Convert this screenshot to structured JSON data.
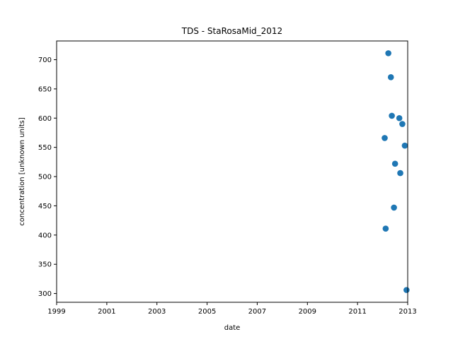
{
  "chart_data": {
    "type": "scatter",
    "title": "TDS - StaRosaMid_2012",
    "xlabel": "date",
    "ylabel": "concentration [unknown units]",
    "xlim": [
      "1999-01-01",
      "2013-01-01"
    ],
    "ylim": [
      285,
      732
    ],
    "x_ticks": [
      "1999",
      "2001",
      "2003",
      "2005",
      "2007",
      "2009",
      "2011",
      "2013"
    ],
    "y_ticks": [
      300,
      350,
      400,
      450,
      500,
      550,
      600,
      650,
      700
    ],
    "grid": false,
    "marker_color": "#1f77b4",
    "points": [
      {
        "x": "2012-02-01",
        "y": 566
      },
      {
        "x": "2012-02-15",
        "y": 411
      },
      {
        "x": "2012-03-25",
        "y": 711
      },
      {
        "x": "2012-05-01",
        "y": 670
      },
      {
        "x": "2012-05-15",
        "y": 604
      },
      {
        "x": "2012-07-01",
        "y": 522
      },
      {
        "x": "2012-06-15",
        "y": 447
      },
      {
        "x": "2012-09-01",
        "y": 600
      },
      {
        "x": "2012-09-15",
        "y": 506
      },
      {
        "x": "2012-10-15",
        "y": 590
      },
      {
        "x": "2012-11-20",
        "y": 553
      },
      {
        "x": "2012-12-15",
        "y": 306
      }
    ]
  }
}
